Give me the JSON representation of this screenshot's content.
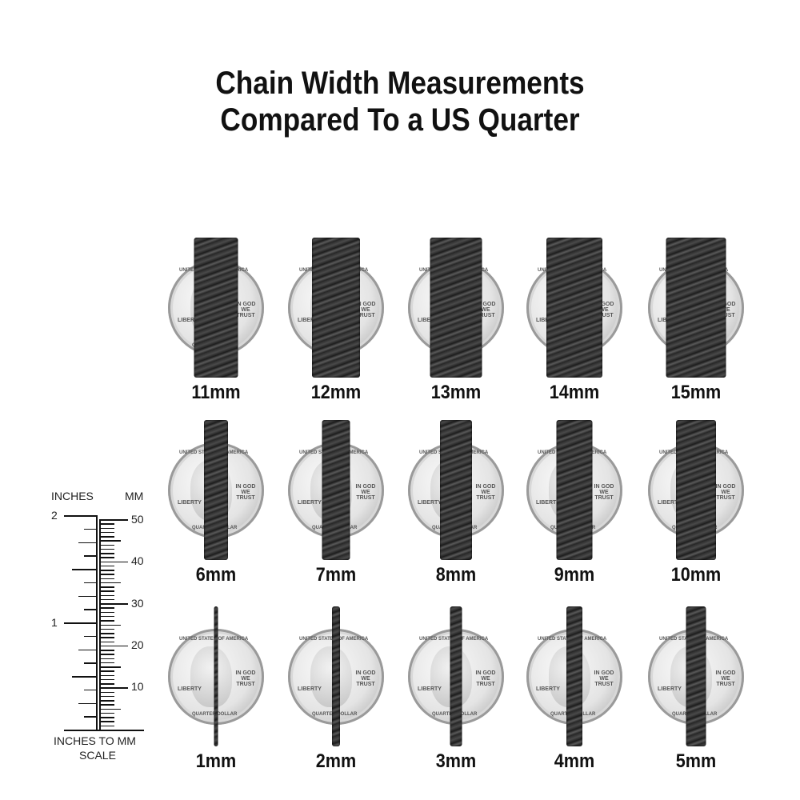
{
  "title": {
    "line1": "Chain Width Measurements",
    "line2": "Compared To a US Quarter"
  },
  "coin": {
    "top_text": "UNITED STATES OF AMERICA",
    "left_text": "LIBERTY",
    "right_text": "IN GOD WE TRUST",
    "bottom_text": "QUARTER DOLLAR"
  },
  "rows": [
    [
      {
        "label": "11mm",
        "width_mm": 11
      },
      {
        "label": "12mm",
        "width_mm": 12
      },
      {
        "label": "13mm",
        "width_mm": 13
      },
      {
        "label": "14mm",
        "width_mm": 14
      },
      {
        "label": "15mm",
        "width_mm": 15
      }
    ],
    [
      {
        "label": "6mm",
        "width_mm": 6
      },
      {
        "label": "7mm",
        "width_mm": 7
      },
      {
        "label": "8mm",
        "width_mm": 8
      },
      {
        "label": "9mm",
        "width_mm": 9
      },
      {
        "label": "10mm",
        "width_mm": 10
      }
    ],
    [
      {
        "label": "1mm",
        "width_mm": 1
      },
      {
        "label": "2mm",
        "width_mm": 2
      },
      {
        "label": "3mm",
        "width_mm": 3
      },
      {
        "label": "4mm",
        "width_mm": 4
      },
      {
        "label": "5mm",
        "width_mm": 5
      }
    ]
  ],
  "scale": {
    "inches_header": "INCHES",
    "mm_header": "MM",
    "inch_labels": [
      "2",
      "1"
    ],
    "mm_labels": [
      "50",
      "40",
      "30",
      "20",
      "10"
    ],
    "caption_line1": "INCHES TO MM",
    "caption_line2": "SCALE"
  },
  "colors": {
    "chain": "#2e2e2e",
    "coin": "#e0e0e0",
    "text": "#111111"
  }
}
